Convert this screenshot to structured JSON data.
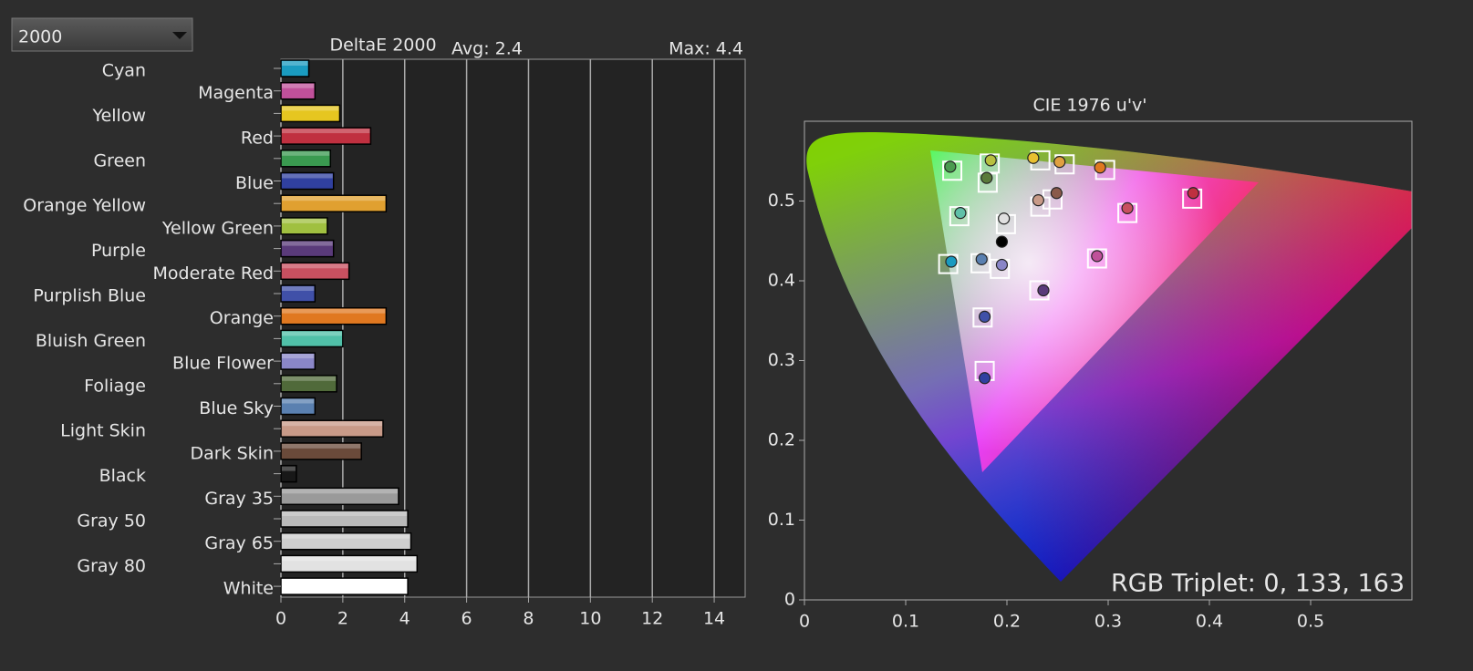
{
  "dropdown": {
    "value": "2000"
  },
  "chart_data": [
    {
      "type": "bar",
      "orientation": "horizontal",
      "title": "DeltaE 2000",
      "annotations": [
        "Avg: 2.4",
        "Max: 4.4"
      ],
      "categories": [
        "Cyan",
        "Magenta",
        "Yellow",
        "Red",
        "Green",
        "Blue",
        "Orange Yellow",
        "Yellow Green",
        "Purple",
        "Moderate Red",
        "Purplish Blue",
        "Orange",
        "Bluish Green",
        "Blue Flower",
        "Foliage",
        "Blue Sky",
        "Light Skin",
        "Dark Skin",
        "Black",
        "Gray 35",
        "Gray 50",
        "Gray 65",
        "Gray 80",
        "White"
      ],
      "values": [
        0.9,
        1.1,
        1.9,
        2.9,
        1.6,
        1.7,
        3.4,
        1.5,
        1.7,
        2.2,
        1.1,
        3.4,
        2.0,
        1.1,
        1.8,
        1.1,
        3.3,
        2.6,
        0.5,
        3.8,
        4.1,
        4.2,
        4.4,
        4.1
      ],
      "colors": [
        "#1a9bc0",
        "#c0509a",
        "#e6c620",
        "#c03040",
        "#3a9a50",
        "#3040a0",
        "#e0a030",
        "#a0c040",
        "#5a3a7a",
        "#c85060",
        "#4050a8",
        "#e07820",
        "#50c0a8",
        "#8a86c8",
        "#506a3a",
        "#5a80b0",
        "#c89a88",
        "#6a4a3a",
        "#181818",
        "#9a9a9a",
        "#bababa",
        "#cecece",
        "#e2e2e2",
        "#ffffff"
      ],
      "xlim": [
        0,
        15
      ],
      "xticks": [
        0,
        2,
        4,
        6,
        8,
        10,
        12,
        14
      ],
      "grid": true
    },
    {
      "type": "scatter",
      "title": "CIE 1976 u'v'",
      "annotations": [
        "RGB Triplet: 0, 133, 163"
      ],
      "xlim": [
        0,
        0.6
      ],
      "ylim": [
        0,
        0.6
      ],
      "xticks": [
        0,
        0.1,
        0.2,
        0.3,
        0.4,
        0.5
      ],
      "yticks": [
        0,
        0.1,
        0.2,
        0.3,
        0.4,
        0.5
      ],
      "series": [
        {
          "marker": "square",
          "color": "#ffffff",
          "x": [
            0.146,
            0.183,
            0.181,
            0.233,
            0.257,
            0.297,
            0.383,
            0.245,
            0.233,
            0.153,
            0.199,
            0.319,
            0.289,
            0.142,
            0.174,
            0.193,
            0.232,
            0.176,
            0.178
          ],
          "y": [
            0.538,
            0.547,
            0.523,
            0.551,
            0.546,
            0.539,
            0.503,
            0.502,
            0.493,
            0.481,
            0.471,
            0.485,
            0.428,
            0.421,
            0.422,
            0.415,
            0.388,
            0.354,
            0.287
          ]
        },
        {
          "marker": "circle",
          "x": [
            0.144,
            0.184,
            0.18,
            0.226,
            0.252,
            0.292,
            0.384,
            0.249,
            0.231,
            0.154,
            0.197,
            0.319,
            0.289,
            0.145,
            0.175,
            0.195,
            0.236,
            0.178,
            0.178,
            0.195
          ],
          "y": [
            0.543,
            0.551,
            0.529,
            0.554,
            0.549,
            0.542,
            0.51,
            0.51,
            0.501,
            0.485,
            0.478,
            0.491,
            0.431,
            0.424,
            0.427,
            0.42,
            0.388,
            0.355,
            0.278,
            0.449
          ],
          "colors": [
            "#4a9a50",
            "#b8c040",
            "#5a7a3a",
            "#e8c030",
            "#e0a040",
            "#e07820",
            "#c03040",
            "#8a5a4a",
            "#c89a88",
            "#60c0a8",
            "#e0e0e0",
            "#c85060",
            "#c0509a",
            "#1a9bc0",
            "#5a80b0",
            "#8a86c8",
            "#5a3a7a",
            "#4050a8",
            "#3040a0",
            "#000000"
          ]
        }
      ]
    }
  ]
}
